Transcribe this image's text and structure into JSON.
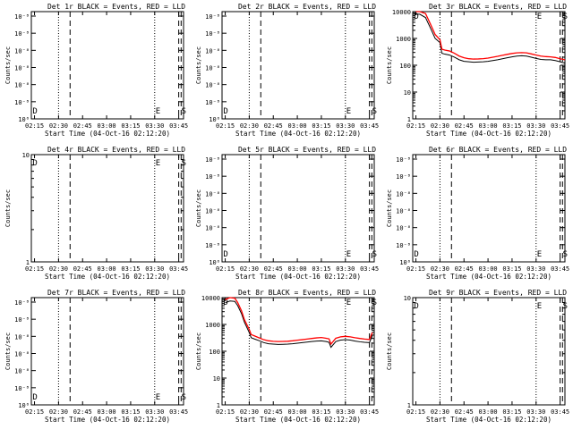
{
  "x_tick_labels": [
    "02:15",
    "02:30",
    "02:45",
    "03:00",
    "03:15",
    "03:30",
    "03:45"
  ],
  "x_axis_title": "Start Time (04-Oct-16 02:12:20)",
  "y_axis_title": "Counts/sec",
  "marker_labels": [
    "D",
    "E",
    "S"
  ],
  "colors": {
    "events": "#000000",
    "lld": "#ff0000"
  },
  "chart_data": [
    {
      "type": "line",
      "title": "Det 1r BLACK = Events, RED = LLD",
      "ylabel": "Counts/sec",
      "xlabel": "Start Time (04-Oct-16 02:12:20)",
      "y_scale": "log",
      "ylim": [
        1e-06,
        1e-08
      ],
      "y_ticks": [
        "10⁻⁸",
        "10⁻⁸",
        "10⁻⁸",
        "10⁻⁸",
        "10⁻⁸",
        "10⁻⁸",
        "10⁰"
      ],
      "series": []
    },
    {
      "type": "line",
      "title": "Det 2r BLACK = Events, RED = LLD",
      "ylabel": "Counts/sec",
      "xlabel": "Start Time (04-Oct-16 02:12:20)",
      "y_scale": "log",
      "ylim": [
        1e-06,
        1e-08
      ],
      "y_ticks": [
        "10⁻⁸",
        "10⁻⁸",
        "10⁻⁸",
        "10⁻⁸",
        "10⁻⁸",
        "10⁻⁸",
        "10⁰"
      ],
      "series": []
    },
    {
      "type": "line",
      "title": "Det 3r BLACK = Events, RED = LLD",
      "ylabel": "Counts/sec",
      "xlabel": "Start Time (04-Oct-16 02:12:20)",
      "y_scale": "log",
      "ylim": [
        1,
        10000
      ],
      "y_ticks": [
        "1",
        "10",
        "100",
        "1000",
        "10000"
      ],
      "series": [
        {
          "color": "#000000",
          "x": [
            2.25,
            2.29,
            2.35,
            2.4,
            2.45,
            2.5,
            2.52,
            2.55,
            2.6,
            2.65,
            2.7,
            2.75,
            2.8,
            2.85,
            2.9,
            2.95,
            3.0,
            3.05,
            3.1,
            3.15,
            3.2,
            3.25,
            3.3,
            3.35,
            3.4,
            3.45,
            3.5,
            3.55,
            3.6,
            3.65,
            3.7,
            3.75,
            3.8
          ],
          "y": [
            8000,
            8000,
            6000,
            2500,
            1000,
            700,
            280,
            260,
            240,
            200,
            160,
            140,
            135,
            130,
            132,
            135,
            140,
            150,
            160,
            175,
            190,
            205,
            220,
            225,
            220,
            200,
            180,
            165,
            160,
            160,
            150,
            135,
            120
          ]
        },
        {
          "color": "#ff0000",
          "x": [
            2.25,
            2.29,
            2.35,
            2.4,
            2.45,
            2.5,
            2.52,
            2.55,
            2.6,
            2.65,
            2.7,
            2.75,
            2.8,
            2.85,
            2.9,
            2.95,
            3.0,
            3.05,
            3.1,
            3.15,
            3.2,
            3.25,
            3.3,
            3.35,
            3.4,
            3.45,
            3.5,
            3.55,
            3.6,
            3.65,
            3.7,
            3.75,
            3.8
          ],
          "y": [
            11000,
            11000,
            8500,
            3500,
            1400,
            900,
            400,
            370,
            340,
            280,
            220,
            190,
            175,
            170,
            172,
            176,
            185,
            200,
            215,
            235,
            255,
            275,
            290,
            295,
            290,
            265,
            240,
            220,
            210,
            205,
            195,
            175,
            160
          ]
        }
      ]
    },
    {
      "type": "line",
      "title": "Det 4r BLACK = Events, RED = LLD",
      "ylabel": "Counts/sec",
      "xlabel": "Start Time (04-Oct-16 02:12:20)",
      "y_scale": "log",
      "ylim": [
        1,
        10
      ],
      "y_ticks": [
        "1",
        "10"
      ],
      "series": []
    },
    {
      "type": "line",
      "title": "Det 5r BLACK = Events, RED = LLD",
      "ylabel": "Counts/sec",
      "xlabel": "Start Time (04-Oct-16 02:12:20)",
      "y_scale": "log",
      "ylim": [
        1e-06,
        1e-08
      ],
      "y_ticks": [
        "10⁻⁸",
        "10⁻⁸",
        "10⁻⁸",
        "10⁻⁸",
        "10⁻⁸",
        "10⁻⁸",
        "10⁰"
      ],
      "series": []
    },
    {
      "type": "line",
      "title": "Det 6r BLACK = Events, RED = LLD",
      "ylabel": "Counts/sec",
      "xlabel": "Start Time (04-Oct-16 02:12:20)",
      "y_scale": "log",
      "ylim": [
        1e-06,
        1e-08
      ],
      "y_ticks": [
        "10⁻⁸",
        "10⁻⁸",
        "10⁻⁸",
        "10⁻⁸",
        "10⁻⁸",
        "10⁻⁸",
        "10⁰"
      ],
      "series": []
    },
    {
      "type": "line",
      "title": "Det 7r BLACK = Events, RED = LLD",
      "ylabel": "Counts/sec",
      "xlabel": "Start Time (04-Oct-16 02:12:20)",
      "y_scale": "log",
      "ylim": [
        1e-06,
        1e-08
      ],
      "y_ticks": [
        "10⁻⁸",
        "10⁻⁸",
        "10⁻⁸",
        "10⁻⁸",
        "10⁻⁸",
        "10⁻⁸",
        "10⁰"
      ],
      "series": []
    },
    {
      "type": "line",
      "title": "Det 8r BLACK = Events, RED = LLD",
      "ylabel": "Counts/sec",
      "xlabel": "Start Time (04-Oct-16 02:12:20)",
      "y_scale": "log",
      "ylim": [
        1,
        10000
      ],
      "y_ticks": [
        "1",
        "10",
        "100",
        "1000",
        "10000"
      ],
      "series": [
        {
          "color": "#000000",
          "x": [
            2.25,
            2.3,
            2.35,
            2.38,
            2.42,
            2.45,
            2.5,
            2.52,
            2.55,
            2.6,
            2.65,
            2.7,
            2.75,
            2.8,
            2.85,
            2.9,
            2.95,
            3.0,
            3.05,
            3.1,
            3.15,
            3.2,
            3.25,
            3.3,
            3.33,
            3.35,
            3.4,
            3.45,
            3.5,
            3.55,
            3.6,
            3.65,
            3.7,
            3.75,
            3.78
          ],
          "y": [
            6500,
            7500,
            7200,
            5000,
            2500,
            1200,
            500,
            320,
            290,
            250,
            210,
            190,
            185,
            180,
            182,
            185,
            190,
            200,
            210,
            220,
            230,
            240,
            245,
            230,
            215,
            140,
            230,
            260,
            270,
            260,
            240,
            225,
            215,
            210,
            380
          ]
        },
        {
          "color": "#ff0000",
          "x": [
            2.25,
            2.3,
            2.35,
            2.38,
            2.42,
            2.45,
            2.5,
            2.52,
            2.55,
            2.6,
            2.65,
            2.7,
            2.75,
            2.8,
            2.85,
            2.9,
            2.95,
            3.0,
            3.05,
            3.1,
            3.15,
            3.2,
            3.25,
            3.3,
            3.33,
            3.35,
            3.4,
            3.45,
            3.5,
            3.55,
            3.6,
            3.65,
            3.7,
            3.75,
            3.78
          ],
          "y": [
            8500,
            10000,
            9500,
            6500,
            3200,
            1500,
            650,
            420,
            380,
            320,
            270,
            245,
            235,
            230,
            232,
            236,
            245,
            258,
            270,
            285,
            300,
            315,
            325,
            305,
            290,
            185,
            305,
            345,
            360,
            345,
            320,
            300,
            285,
            275,
            500
          ]
        }
      ]
    },
    {
      "type": "line",
      "title": "Det 9r BLACK = Events, RED = LLD",
      "ylabel": "Counts/sec",
      "xlabel": "Start Time (04-Oct-16 02:12:20)",
      "y_scale": "log",
      "ylim": [
        1,
        10
      ],
      "y_ticks": [
        "1",
        "10"
      ],
      "series": []
    }
  ]
}
